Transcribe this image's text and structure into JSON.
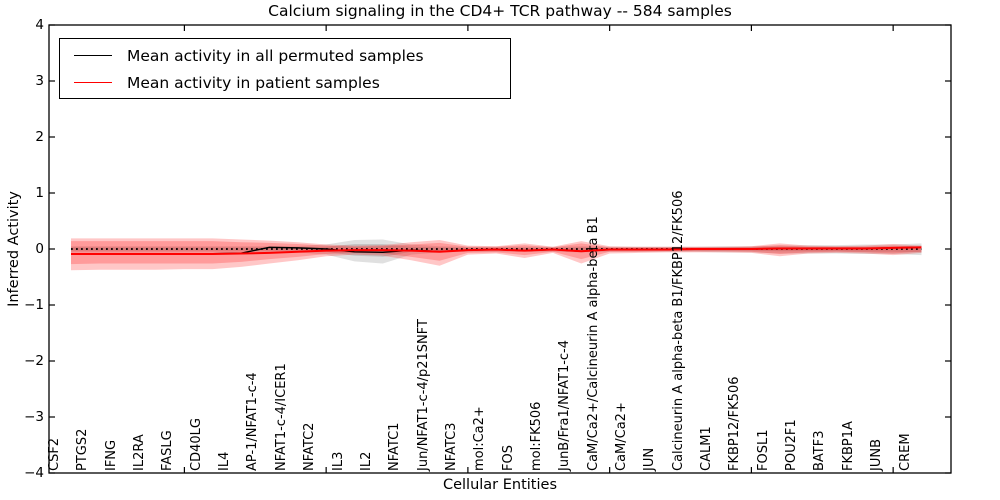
{
  "title": "Calcium signaling in the CD4+ TCR pathway -- 584 samples",
  "legend": {
    "entries": [
      {
        "label": "Mean activity in all permuted samples",
        "color": "#000000"
      },
      {
        "label": "Mean activity in patient samples",
        "color": "#ff0000"
      }
    ],
    "position": "upper left"
  },
  "chart_data": {
    "type": "line",
    "title": "Calcium signaling in the CD4+ TCR pathway -- 584 samples",
    "xlabel": "Cellular Entities",
    "ylabel": "Inferred Activity",
    "ylim": [
      -4,
      4
    ],
    "yticks": [
      4,
      3,
      2,
      1,
      0,
      -1,
      -2,
      -3,
      -4
    ],
    "ytick_labels": [
      "4",
      "3",
      "2",
      "1",
      "0",
      "−1",
      "−2",
      "−3",
      "−4"
    ],
    "xtick_indices": [
      4,
      9,
      14,
      19,
      24,
      29
    ],
    "grid": false,
    "zero_reference_line": {
      "value": 0,
      "style": "dotted",
      "color": "#000000"
    },
    "categories": [
      "CSF2",
      "PTGS2",
      "IFNG",
      "IL2RA",
      "FASLG",
      "CD40LG",
      "IL4",
      "AP-1/NFAT1-c-4",
      "NFAT1-c-4/ICER1",
      "NFATC2",
      "IL3",
      "IL2",
      "NFATC1",
      "Jun/NFAT1-c-4/p21SNFT",
      "NFATC3",
      "mol:Ca2+",
      "FOS",
      "mol:FK506",
      "JunB/Fra1/NFAT1-c-4",
      "CaM/Ca2+/Calcineurin A alpha-beta B1",
      "CaM/Ca2+",
      "JUN",
      "Calcineurin A alpha-beta B1/FKBP12/FK506",
      "CALM1",
      "FKBP12/FK506",
      "FOSL1",
      "POU2F1",
      "BATF3",
      "FKBP1A",
      "JUNB",
      "CREM"
    ],
    "series": [
      {
        "name": "Mean activity in all permuted samples",
        "color": "#000000",
        "style": "solid",
        "values": [
          -0.085,
          -0.085,
          -0.085,
          -0.085,
          -0.085,
          -0.085,
          -0.075,
          0.03,
          0.02,
          0,
          -0.05,
          -0.06,
          -0.02,
          -0.045,
          -0.02,
          -0.01,
          -0.03,
          -0.01,
          -0.04,
          -0.01,
          -0.01,
          -0.01,
          0,
          0,
          0,
          0.01,
          0.01,
          0.01,
          0.01,
          0.02,
          0.03
        ]
      },
      {
        "name": "Mean activity in patient samples",
        "color": "#ff0000",
        "style": "solid",
        "values": [
          -0.09,
          -0.09,
          -0.09,
          -0.09,
          -0.09,
          -0.09,
          -0.08,
          -0.07,
          -0.05,
          -0.03,
          -0.02,
          -0.02,
          -0.03,
          -0.05,
          -0.02,
          -0.01,
          -0.03,
          -0.01,
          -0.04,
          -0.01,
          -0.01,
          -0.01,
          0,
          0,
          0,
          0.01,
          0.01,
          0.01,
          0.01,
          0.02,
          0.03
        ]
      }
    ],
    "bands": [
      {
        "name": "permuted-samples-band-outer",
        "color": "rgba(0,0,0,0.12)",
        "upper": [
          0.05,
          0.05,
          0.05,
          0.05,
          0.05,
          0.05,
          0.05,
          0.05,
          0.05,
          0.08,
          0.16,
          0.17,
          0.08,
          0.05,
          0.04,
          0.04,
          0.04,
          0.04,
          0.05,
          0.04,
          0.04,
          0.04,
          0.04,
          0.05,
          0.05,
          0.06,
          0.07,
          0.07,
          0.08,
          0.08,
          0.1
        ],
        "lower": [
          -0.06,
          -0.06,
          -0.06,
          -0.06,
          -0.06,
          -0.06,
          -0.06,
          -0.06,
          -0.06,
          -0.1,
          -0.22,
          -0.26,
          -0.1,
          -0.06,
          -0.05,
          -0.05,
          -0.05,
          -0.05,
          -0.06,
          -0.05,
          -0.05,
          -0.05,
          -0.05,
          -0.06,
          -0.06,
          -0.08,
          -0.08,
          -0.08,
          -0.09,
          -0.09,
          -0.11
        ]
      },
      {
        "name": "permuted-samples-band-inner",
        "color": "rgba(0,0,0,0.12)",
        "upper": [
          0.03,
          0.03,
          0.03,
          0.03,
          0.03,
          0.03,
          0.03,
          0.03,
          0.03,
          0.04,
          0.09,
          0.09,
          0.04,
          0.03,
          0.02,
          0.02,
          0.02,
          0.02,
          0.03,
          0.02,
          0.02,
          0.02,
          0.02,
          0.03,
          0.03,
          0.04,
          0.04,
          0.04,
          0.04,
          0.04,
          0.06
        ],
        "lower": [
          -0.03,
          -0.03,
          -0.03,
          -0.03,
          -0.03,
          -0.03,
          -0.03,
          -0.03,
          -0.03,
          -0.05,
          -0.12,
          -0.14,
          -0.05,
          -0.03,
          -0.03,
          -0.03,
          -0.03,
          -0.03,
          -0.03,
          -0.03,
          -0.03,
          -0.03,
          -0.03,
          -0.03,
          -0.03,
          -0.04,
          -0.04,
          -0.04,
          -0.05,
          -0.05,
          -0.06
        ]
      },
      {
        "name": "patient-samples-band-outer",
        "color": "rgba(255,0,0,0.22)",
        "upper": [
          0.19,
          0.19,
          0.19,
          0.19,
          0.19,
          0.19,
          0.17,
          0.15,
          0.12,
          0.08,
          0.06,
          0.07,
          0.12,
          0.16,
          0.06,
          0.05,
          0.1,
          0.04,
          0.14,
          0.05,
          0.04,
          0.04,
          0.04,
          0.04,
          0.05,
          0.1,
          0.06,
          0.05,
          0.06,
          0.09,
          0.06
        ],
        "lower": [
          -0.38,
          -0.37,
          -0.37,
          -0.37,
          -0.36,
          -0.36,
          -0.32,
          -0.26,
          -0.2,
          -0.13,
          -0.1,
          -0.12,
          -0.2,
          -0.3,
          -0.1,
          -0.08,
          -0.16,
          -0.07,
          -0.26,
          -0.08,
          -0.07,
          -0.06,
          -0.06,
          -0.06,
          -0.07,
          -0.13,
          -0.08,
          -0.07,
          -0.08,
          -0.11,
          -0.07
        ]
      },
      {
        "name": "patient-samples-band-inner",
        "color": "rgba(255,0,0,0.22)",
        "upper": [
          0.14,
          0.14,
          0.14,
          0.14,
          0.14,
          0.14,
          0.12,
          0.11,
          0.09,
          0.06,
          0.04,
          0.05,
          0.08,
          0.11,
          0.04,
          0.04,
          0.07,
          0.03,
          0.1,
          0.03,
          0.03,
          0.03,
          0.03,
          0.03,
          0.04,
          0.07,
          0.04,
          0.04,
          0.04,
          0.06,
          0.04
        ],
        "lower": [
          -0.27,
          -0.26,
          -0.26,
          -0.26,
          -0.26,
          -0.26,
          -0.23,
          -0.18,
          -0.14,
          -0.09,
          -0.07,
          -0.08,
          -0.14,
          -0.21,
          -0.07,
          -0.06,
          -0.11,
          -0.05,
          -0.18,
          -0.05,
          -0.05,
          -0.04,
          -0.04,
          -0.04,
          -0.05,
          -0.09,
          -0.06,
          -0.05,
          -0.06,
          -0.08,
          -0.05
        ]
      }
    ]
  }
}
